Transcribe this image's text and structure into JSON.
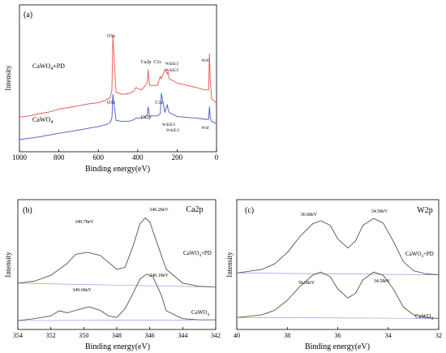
{
  "chart_data": [
    {
      "type": "line",
      "panel_label": "(a)",
      "title": "",
      "xlabel": "Binding energy(eV)",
      "ylabel": "Intensity",
      "xlim": [
        1000,
        0
      ],
      "x_reversed": true,
      "xticks": [
        "1000",
        "800",
        "600",
        "400",
        "200",
        "0"
      ],
      "grid": false,
      "series": [
        {
          "name": "CaWO4+PD",
          "color": "#e8534f",
          "x": [
            1000,
            950,
            900,
            850,
            800,
            750,
            700,
            650,
            600,
            560,
            540,
            531,
            526,
            510,
            480,
            440,
            420,
            410,
            380,
            352,
            347,
            340,
            300,
            285,
            280,
            262,
            250,
            246,
            240,
            200,
            150,
            100,
            60,
            40,
            36,
            32,
            25,
            10,
            0
          ],
          "y": [
            10,
            10.5,
            11.5,
            12.2,
            13.5,
            14.2,
            15,
            15.8,
            16.3,
            17.5,
            18.5,
            22,
            46,
            21,
            20,
            20.5,
            21.5,
            23,
            22,
            25,
            31,
            24,
            24,
            28,
            27,
            31,
            29,
            30,
            27,
            25,
            24,
            23,
            22,
            22,
            38,
            27,
            18,
            17,
            16
          ]
        },
        {
          "name": "CaWO4",
          "color": "#4b52c8",
          "x": [
            1000,
            950,
            900,
            850,
            800,
            750,
            700,
            650,
            600,
            560,
            540,
            531,
            526,
            510,
            480,
            440,
            420,
            410,
            380,
            352,
            347,
            340,
            300,
            285,
            280,
            262,
            250,
            246,
            240,
            200,
            150,
            100,
            60,
            40,
            36,
            32,
            25,
            10,
            0
          ],
          "y": [
            0,
            0.6,
            1.2,
            2,
            2.8,
            3.5,
            4.2,
            5,
            5.8,
            6.6,
            7.5,
            9.5,
            20,
            8.5,
            8,
            8.2,
            8.8,
            9.5,
            9.5,
            10.8,
            14.5,
            10.5,
            10.5,
            11.5,
            20.5,
            12,
            15.5,
            13.5,
            12,
            10.2,
            9.8,
            9.5,
            9,
            9,
            14.5,
            10,
            8,
            7.5,
            7
          ]
        }
      ],
      "annotations": [
        "O1s",
        "Ca2p",
        "C1s",
        "W4d3/2",
        "W4d5/2",
        "W4f",
        "O1s",
        "Ca2p",
        "C1s",
        "W4d3/2",
        "W4d5/2",
        "W4f"
      ],
      "series_labels": [
        "CaWO4+PD",
        "CaWO4"
      ]
    },
    {
      "type": "line",
      "panel_label": "(b)",
      "title": "Ca2p",
      "xlabel": "Binding energy(eV)",
      "ylabel": "Intensity",
      "xlim": [
        354,
        342
      ],
      "x_reversed": true,
      "xticks": [
        "354",
        "352",
        "350",
        "348",
        "346",
        "344",
        "342"
      ],
      "grid": false,
      "series": [
        {
          "name": "CaWO4+PD",
          "color": "#6b4a3a",
          "x": [
            354,
            353,
            352,
            351,
            350.5,
            349.78,
            349,
            348,
            347.5,
            347,
            346.6,
            346.28,
            346,
            345.5,
            345,
            344,
            343,
            342
          ],
          "y": [
            10.5,
            11,
            12.5,
            15.5,
            17.8,
            18.3,
            17.5,
            14,
            14.5,
            20,
            25.5,
            27,
            26,
            20,
            14,
            10.5,
            9.7,
            9.5
          ]
        },
        {
          "name": "CaWO4",
          "color": "#6b4a3a",
          "x": [
            354,
            353,
            352,
            351.5,
            351,
            350.5,
            349.68,
            349,
            348.5,
            348,
            347.5,
            347,
            346.6,
            346.18,
            345.8,
            345.3,
            345,
            344,
            343,
            342
          ],
          "y": [
            1,
            1.5,
            2.2,
            3.5,
            3,
            3.6,
            4.5,
            3.6,
            2.2,
            1.8,
            4,
            8,
            11.5,
            12.8,
            12,
            7.5,
            3.5,
            1.5,
            1.2,
            1.2
          ]
        }
      ],
      "annotations": [
        "349.78eV",
        "346.28eV",
        "349.68eV",
        "346.18eV"
      ],
      "series_labels": [
        "CaWO4+PD",
        "CaWO4"
      ]
    },
    {
      "type": "line",
      "panel_label": "(c)",
      "title": "W2p",
      "xlabel": "Binding energy(eV)",
      "ylabel": "Intensity",
      "xlim": [
        40,
        32
      ],
      "x_reversed": true,
      "xticks": [
        "40",
        "38",
        "36",
        "34",
        "32"
      ],
      "grid": false,
      "series": [
        {
          "name": "CaWO4+PD",
          "color": "#6b4a3a",
          "x": [
            40,
            39,
            38.5,
            38,
            37.5,
            37,
            36.68,
            36.3,
            36,
            35.6,
            35.3,
            35,
            34.58,
            34.2,
            33.8,
            33.4,
            33,
            32.5,
            32
          ],
          "y": [
            11,
            11.8,
            13,
            15.5,
            19,
            21.8,
            22.5,
            21.5,
            18.5,
            16.5,
            18,
            21.5,
            23,
            22,
            18,
            13.5,
            11.5,
            10.8,
            10.6
          ]
        },
        {
          "name": "CaWO4",
          "color": "#6b4a3a",
          "x": [
            40,
            39,
            38.5,
            38,
            37.5,
            37,
            36.68,
            36.3,
            36,
            35.6,
            35.3,
            35,
            34.58,
            34.2,
            33.8,
            33.4,
            33,
            32.5,
            32
          ],
          "y": [
            1.2,
            1.8,
            2.8,
            5,
            8,
            10.5,
            11.2,
            10.2,
            7.5,
            5.5,
            6.5,
            9.5,
            11.2,
            10.5,
            7.5,
            3.5,
            1.8,
            1.2,
            1
          ]
        }
      ],
      "annotations": [
        "36.68eV",
        "34.58eV",
        "36.68eV",
        "34.58eV"
      ],
      "series_labels": [
        "CaWO4+PD",
        "CaWO4"
      ]
    }
  ]
}
